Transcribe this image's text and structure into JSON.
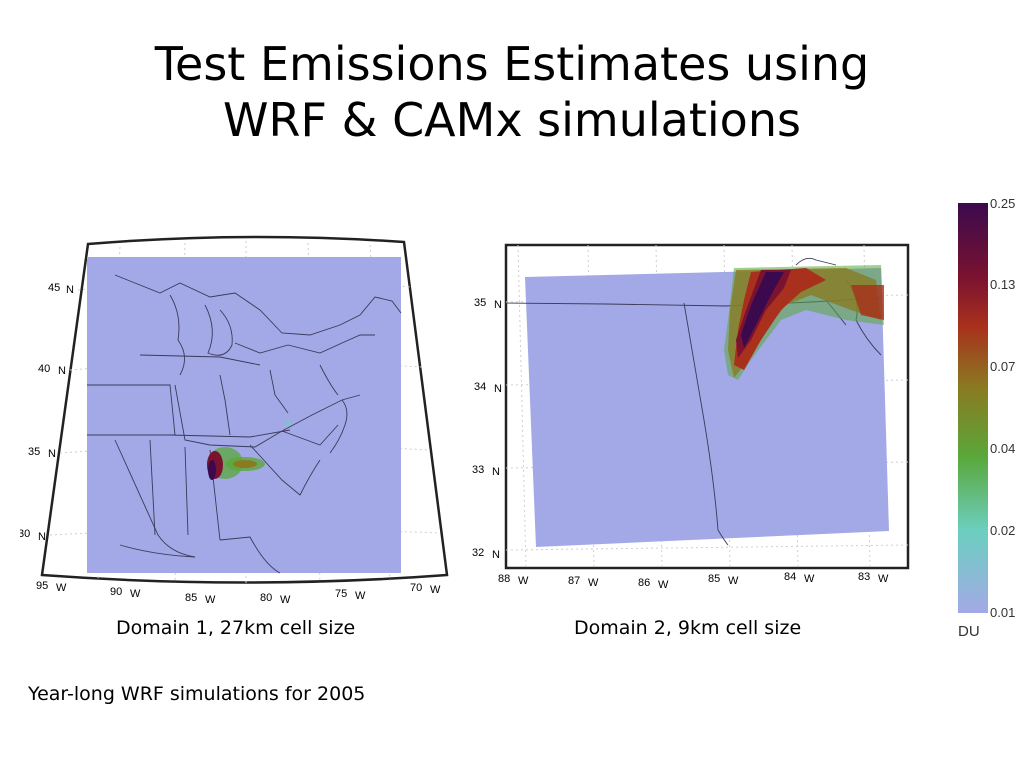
{
  "title": {
    "line1": "Test Emissions Estimates using",
    "line2": "WRF & CAMx simulations"
  },
  "map1": {
    "caption": "Domain 1, 27km cell size",
    "lat_labels": [
      "45",
      "40",
      "35",
      "30"
    ],
    "lat_suffix": "N",
    "lon_labels": [
      "95",
      "90",
      "85",
      "80",
      "75",
      "70"
    ],
    "lon_suffix": "W"
  },
  "map2": {
    "caption": "Domain 2, 9km cell size",
    "lat_labels": [
      "35",
      "34",
      "33",
      "32"
    ],
    "lat_suffix": "N",
    "lon_labels": [
      "88",
      "87",
      "86",
      "85",
      "84",
      "83"
    ],
    "lon_suffix": "W"
  },
  "colorbar": {
    "unit": "DU",
    "ticks": [
      "0.25",
      "0.13",
      "0.07",
      "0.04",
      "0.02",
      "0.01"
    ],
    "colors": [
      "#3b0a4e",
      "#7a1230",
      "#a8301c",
      "#8a7a22",
      "#5aa83a",
      "#6ccfc0",
      "#a3a9e6"
    ]
  },
  "footnote": "Year-long WRF simulations for 2005"
}
